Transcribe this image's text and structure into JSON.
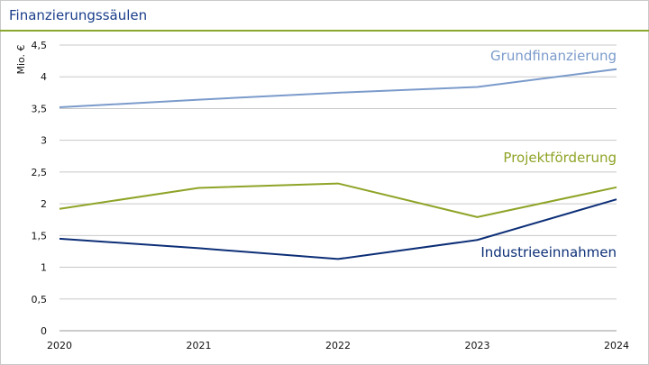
{
  "title": "Finanzierungssäulen",
  "colors": {
    "grid": "#c8c8c8",
    "axis": "#9a9a9a",
    "rule": "#8aa82e"
  },
  "chart_data": {
    "type": "line",
    "title": "Finanzierungssäulen",
    "xlabel": "",
    "ylabel": "Mio. €",
    "x": [
      "2020",
      "2021",
      "2022",
      "2023",
      "2024"
    ],
    "ylim": [
      0,
      4.5
    ],
    "yticks": [
      "0",
      "0,5",
      "1",
      "1,5",
      "2",
      "2,5",
      "3",
      "3,5",
      "4",
      "4,5"
    ],
    "grid": true,
    "series": [
      {
        "name": "Grundfinanzierung",
        "color": "#7b9bcb",
        "values": [
          3.52,
          3.64,
          3.75,
          3.84,
          4.12
        ]
      },
      {
        "name": "Projektförderung",
        "color": "#8ea427",
        "values": [
          1.92,
          2.25,
          2.32,
          1.79,
          2.26
        ]
      },
      {
        "name": "Industrieeinnahmen",
        "color": "#0d2f77",
        "values": [
          1.45,
          1.3,
          1.13,
          1.43,
          2.07
        ]
      }
    ]
  }
}
